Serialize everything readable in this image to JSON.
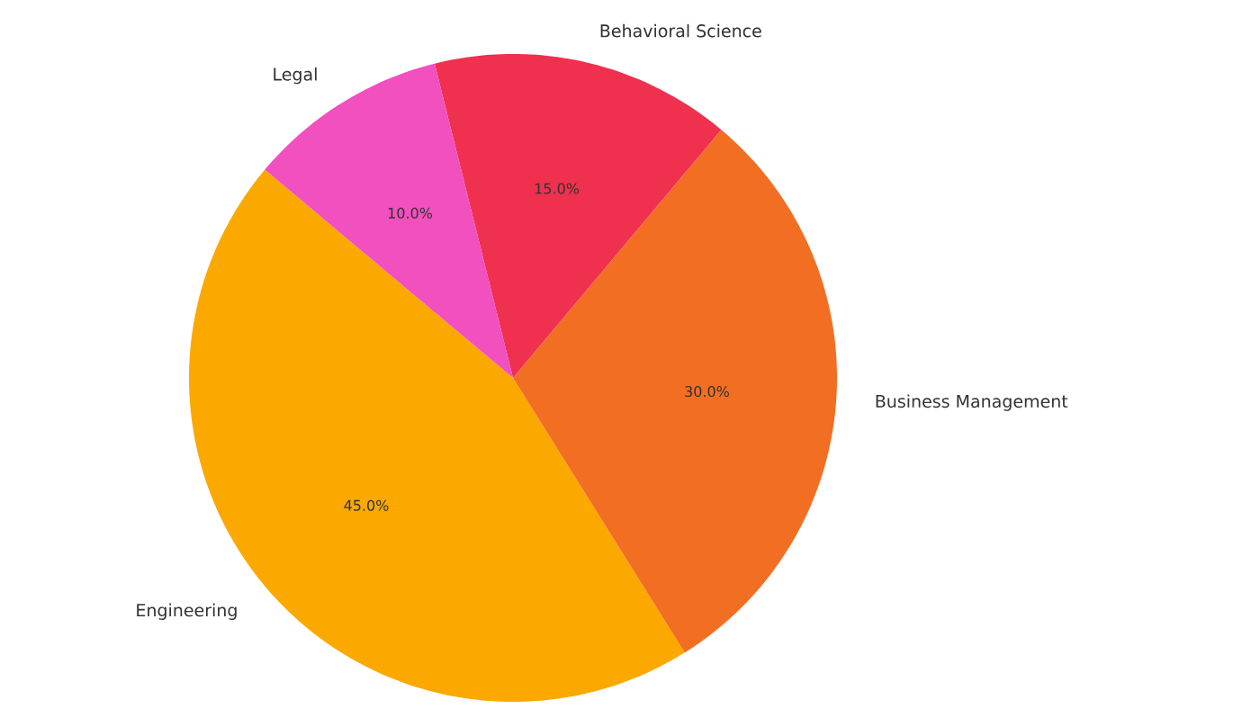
{
  "chart_data": {
    "type": "pie",
    "categories": [
      "Engineering",
      "Business Management",
      "Behavioral Science",
      "Legal"
    ],
    "values": [
      45,
      30,
      15,
      10
    ],
    "colors": [
      "#fba800",
      "#f26e22",
      "#f0304f",
      "#f24fbf"
    ],
    "value_labels": [
      "45.0%",
      "30.0%",
      "15.0%",
      "10.0%"
    ]
  }
}
